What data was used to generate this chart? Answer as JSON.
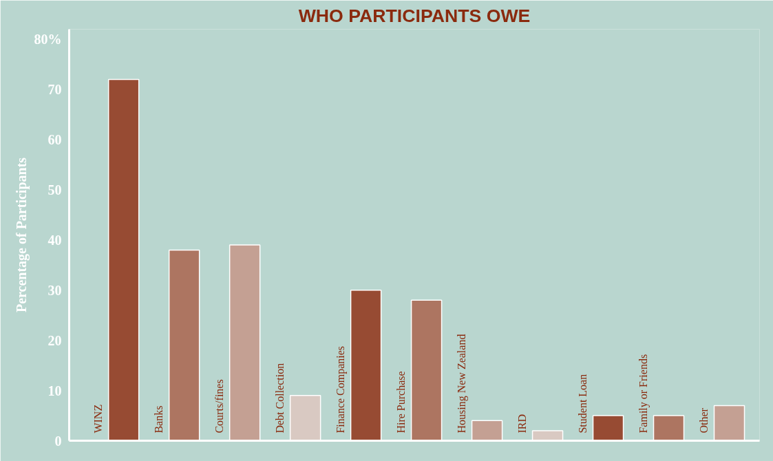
{
  "chart_data": {
    "type": "bar",
    "title": "WHO PARTICIPANTS OWE",
    "ylabel": "Percentage of Participants",
    "categories": [
      "WINZ",
      "Banks",
      "Courts/fines",
      "Debt Collection",
      "Finance Companies",
      "Hire Purchase",
      "Housing New Zealand",
      "IRD",
      "Student Loan",
      "Family or Friends",
      "Other"
    ],
    "values": [
      72,
      38,
      39,
      9,
      30,
      28,
      4,
      2,
      5,
      5,
      7
    ],
    "colors": [
      "#974b33",
      "#ad7561",
      "#c4a093",
      "#d9c9c2",
      "#974b33",
      "#ad7561",
      "#c4a093",
      "#d9c9c2",
      "#974b33",
      "#ad7561",
      "#c4a093"
    ],
    "ylim": [
      0,
      82
    ],
    "yticks": [
      0,
      10,
      20,
      30,
      40,
      50,
      60,
      70,
      {
        "value": 80,
        "label": "80%"
      }
    ],
    "grid": false
  }
}
